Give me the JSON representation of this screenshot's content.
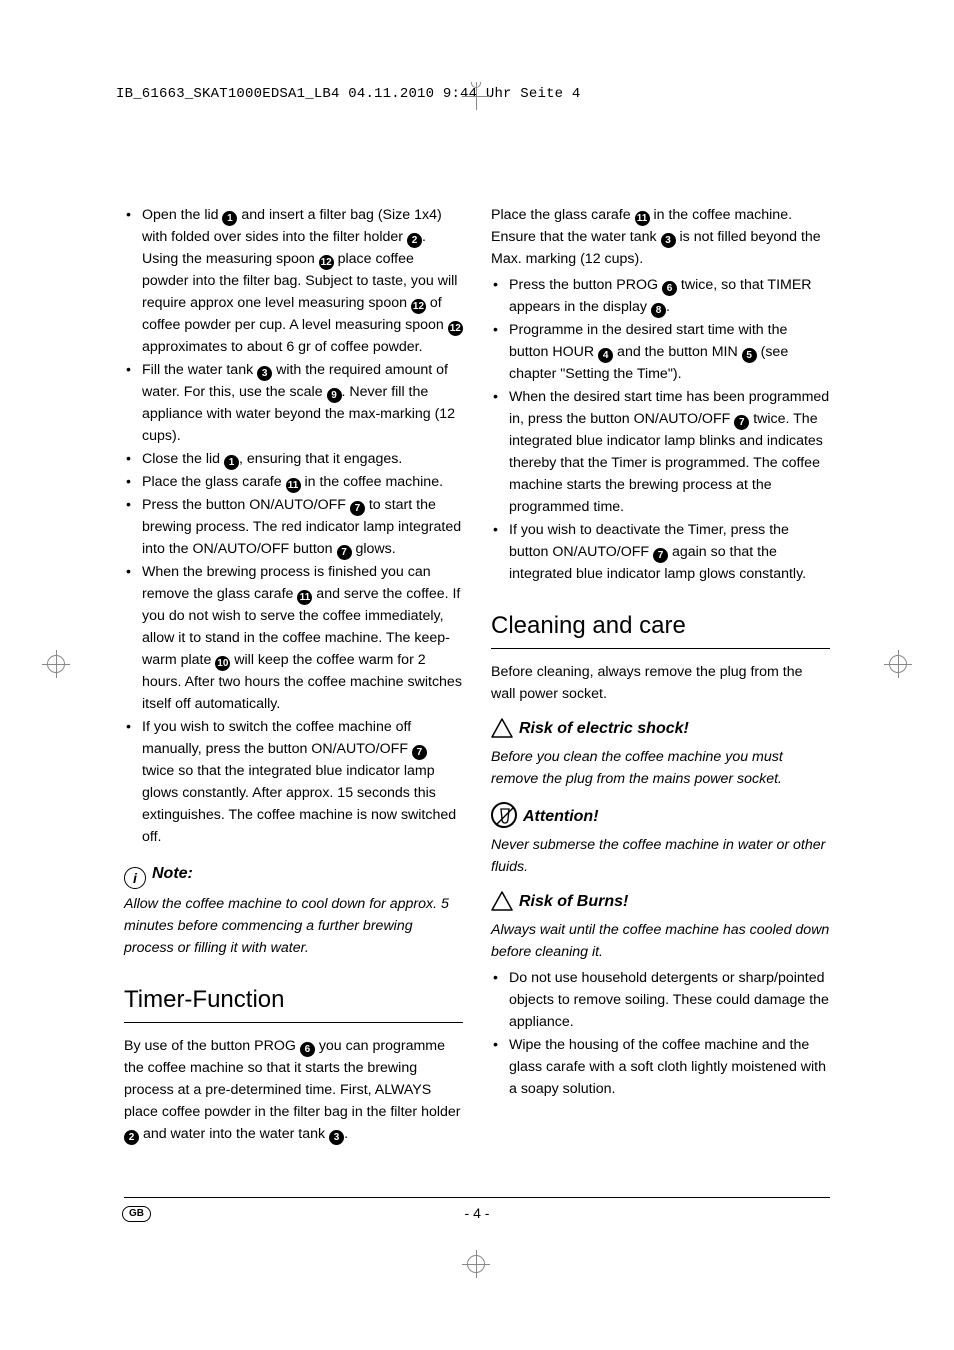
{
  "print_header": "IB_61663_SKAT1000EDSA1_LB4  04.11.2010  9:44 Uhr  Seite 4",
  "footer": {
    "lang": "GB",
    "page": "- 4 -"
  },
  "col1": {
    "bullets_a": [
      {
        "frags": [
          {
            "t": "Open the lid "
          },
          {
            "c": "1"
          },
          {
            "t": " and insert a filter bag (Size 1x4) with folded over sides into the filter holder "
          },
          {
            "c": "2"
          },
          {
            "t": ". Using the measuring spoon "
          },
          {
            "c": "12"
          },
          {
            "t": " place coffee powder into the filter bag. Subject to taste, you will require approx one level measuring spoon "
          },
          {
            "c": "12"
          },
          {
            "t": " of coffee powder per cup. A level measuring spoon "
          },
          {
            "c": "12"
          },
          {
            "t": " approximates to about 6 gr of coffee powder."
          }
        ]
      },
      {
        "frags": [
          {
            "t": "Fill the water tank "
          },
          {
            "c": "3"
          },
          {
            "t": " with the required amount of water. For this, use the scale "
          },
          {
            "c": "9"
          },
          {
            "t": ". Never fill the appliance with water beyond the max-marking (12 cups)."
          }
        ]
      },
      {
        "frags": [
          {
            "t": "Close the lid "
          },
          {
            "c": "1"
          },
          {
            "t": ", ensuring that it engages."
          }
        ]
      },
      {
        "frags": [
          {
            "t": "Place the glass carafe "
          },
          {
            "c": "11"
          },
          {
            "t": " in the coffee machine."
          }
        ]
      },
      {
        "frags": [
          {
            "t": "Press the button ON/AUTO/OFF "
          },
          {
            "c": "7"
          },
          {
            "t": " to start the brewing process. The red indicator lamp integrated into the ON/AUTO/OFF button "
          },
          {
            "c": "7"
          },
          {
            "t": " glows."
          }
        ]
      },
      {
        "frags": [
          {
            "t": "When the brewing process is finished you can remove the glass carafe "
          },
          {
            "c": "11"
          },
          {
            "t": " and serve the coffee. If you do not wish to serve the coffee immediately, allow it to stand in the coffee machine. The keep-warm plate "
          },
          {
            "c": "10"
          },
          {
            "t": " will keep the coffee warm for 2 hours. After two hours the coffee machine switches itself off automatically."
          }
        ]
      },
      {
        "frags": [
          {
            "t": "If you wish to switch the coffee machine off manually, press the button ON/AUTO/OFF "
          },
          {
            "c": "7"
          },
          {
            "t": " twice so that the integrated blue indicator lamp glows constantly. After approx. 15 seconds this extinguishes. The coffee machine is now switched off."
          }
        ]
      }
    ],
    "note_label": "Note:",
    "note_body": "Allow the coffee machine to cool down for approx. 5 minutes before commencing a further brewing process or filling it with water.",
    "timer_heading": "Timer-Function",
    "timer_intro_frags": [
      {
        "t": "By use of the button PROG "
      },
      {
        "c": "6"
      },
      {
        "t": " you can programme the coffee machine so that it starts the brewing process at a pre-determined time. First, ALWAYS place coffee powder in the filter bag in the filter holder "
      },
      {
        "c": "2"
      },
      {
        "t": " and water into the water tank "
      },
      {
        "c": "3"
      },
      {
        "t": "."
      }
    ]
  },
  "col2": {
    "intro_frags": [
      {
        "t": "Place the glass carafe "
      },
      {
        "c": "11"
      },
      {
        "t": " in the coffee machine. Ensure that the water tank "
      },
      {
        "c": "3"
      },
      {
        "t": " is not filled beyond the Max. marking (12 cups)."
      }
    ],
    "bullets": [
      {
        "frags": [
          {
            "t": "Press the button PROG "
          },
          {
            "c": "6"
          },
          {
            "t": " twice, so that TIMER appears in the display "
          },
          {
            "c": "8"
          },
          {
            "t": "."
          }
        ]
      },
      {
        "frags": [
          {
            "t": "Programme in the desired start time with the button HOUR "
          },
          {
            "c": "4"
          },
          {
            "t": " and the button MIN "
          },
          {
            "c": "5"
          },
          {
            "t": " (see chapter \"Setting the Time\")."
          }
        ]
      },
      {
        "frags": [
          {
            "t": "When the desired start time has been programmed in, press the button ON/AUTO/OFF "
          },
          {
            "c": "7"
          },
          {
            "t": " twice. The integrated blue indicator lamp blinks and indicates thereby that the Timer is programmed. The coffee machine starts the brewing process at the programmed time."
          }
        ]
      },
      {
        "frags": [
          {
            "t": "If you wish to deactivate the Timer, press the button ON/AUTO/OFF "
          },
          {
            "c": "7"
          },
          {
            "t": " again so that the integrated blue indicator lamp glows constantly."
          }
        ]
      }
    ],
    "clean_heading": "Cleaning and care",
    "clean_intro": "Before cleaning, always remove the plug from the wall power socket.",
    "shock_label": "Risk of electric shock!",
    "shock_body": "Before you clean the coffee machine you must remove the plug from the mains power socket.",
    "attn_label": "Attention!",
    "attn_body": "Never submerse the coffee machine in water or other fluids.",
    "burns_label": "Risk of Burns!",
    "burns_body": "Always wait until the coffee machine has cooled down before cleaning it.",
    "bullets2": [
      {
        "frags": [
          {
            "t": "Do not use household detergents or sharp/pointed objects to remove soiling. These could damage the appliance."
          }
        ]
      },
      {
        "frags": [
          {
            "t": "Wipe the housing of the coffee machine and the glass carafe with a soft cloth lightly moistened with a soapy solution."
          }
        ]
      }
    ]
  }
}
